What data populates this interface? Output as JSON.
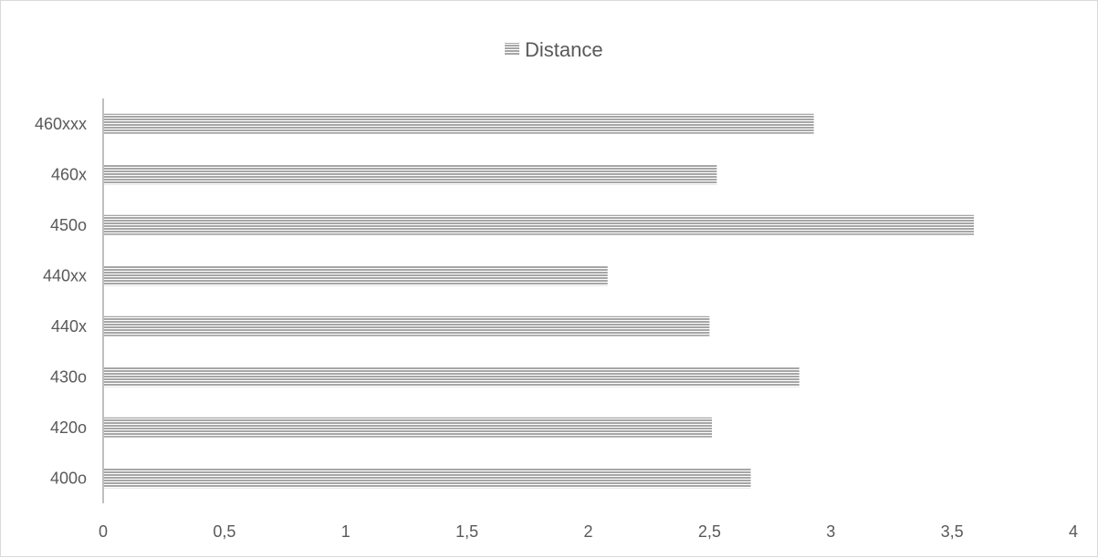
{
  "chart_data": {
    "type": "bar",
    "orientation": "horizontal",
    "categories": [
      "400o",
      "420o",
      "430o",
      "440x",
      "440xx",
      "450o",
      "460x",
      "460xxx"
    ],
    "series": [
      {
        "name": "Distance",
        "values": [
          2.67,
          2.51,
          2.87,
          2.5,
          2.08,
          3.59,
          2.53,
          2.93
        ]
      }
    ],
    "xlim": [
      0,
      4
    ],
    "xticks": [
      "0",
      "0,5",
      "1",
      "1,5",
      "2",
      "2,5",
      "3",
      "3,5",
      "4"
    ],
    "grid": false,
    "legend_position": "top",
    "bar_color": "#a6a6a6"
  }
}
